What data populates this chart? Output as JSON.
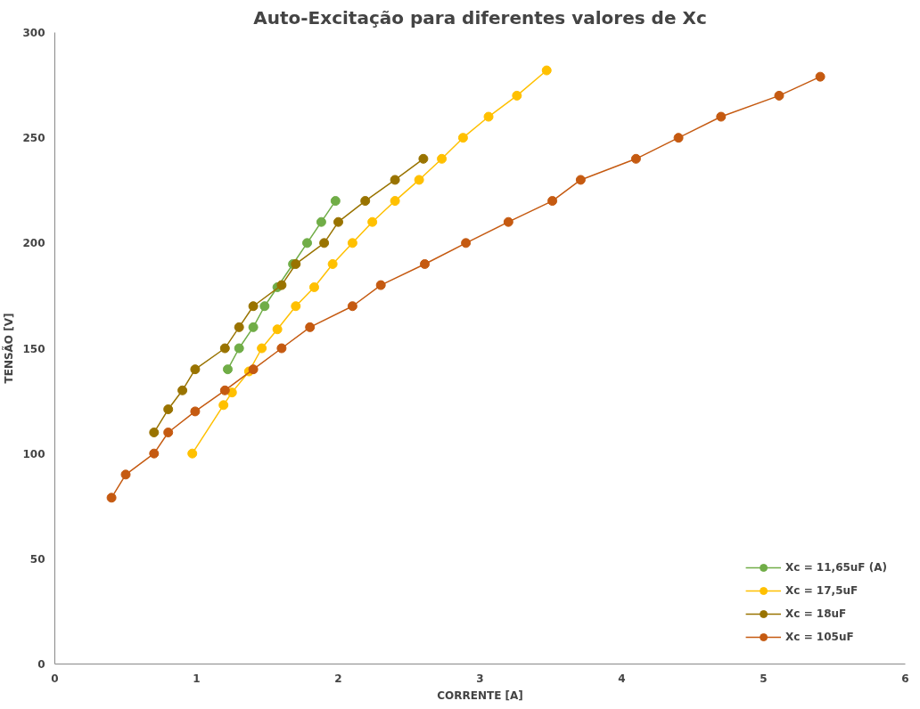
{
  "chart_data": {
    "type": "line",
    "title": "Auto-Excitação para diferentes valores de Xc",
    "xlabel": "CORRENTE [A]",
    "ylabel": "TENSÃO [V]",
    "xlim": [
      0,
      6
    ],
    "xticks": [
      0,
      1,
      2,
      3,
      4,
      5,
      6
    ],
    "ylim": [
      0,
      300
    ],
    "yticks": [
      0,
      50,
      100,
      150,
      200,
      250,
      300
    ],
    "grid": false,
    "legend": "bottom right",
    "marker": "circle",
    "line_style": "solid",
    "series": [
      {
        "name": "Xc = 11,65uF (A)",
        "color": "#70ad47",
        "x": [
          1.22,
          1.3,
          1.4,
          1.48,
          1.57,
          1.68,
          1.78,
          1.88,
          1.98
        ],
        "values": [
          140,
          150,
          160,
          170,
          179,
          190,
          200,
          210,
          220
        ]
      },
      {
        "name": "Xc = 17,5uF",
        "color": "#ffc000",
        "x": [
          0.97,
          1.19,
          1.25,
          1.37,
          1.46,
          1.57,
          1.7,
          1.83,
          1.96,
          2.1,
          2.24,
          2.4,
          2.57,
          2.73,
          2.88,
          3.06,
          3.26,
          3.47
        ],
        "values": [
          100,
          123,
          129,
          139,
          150,
          159,
          170,
          179,
          190,
          200,
          210,
          220,
          230,
          240,
          250,
          260,
          270,
          282
        ]
      },
      {
        "name": "Xc = 18uF",
        "color": "#997300",
        "x": [
          0.7,
          0.8,
          0.9,
          0.99,
          1.2,
          1.3,
          1.4,
          1.6,
          1.7,
          1.9,
          2.0,
          2.19,
          2.4,
          2.6
        ],
        "values": [
          110,
          121,
          130,
          140,
          150,
          160,
          170,
          180,
          190,
          200,
          210,
          220,
          230,
          240
        ]
      },
      {
        "name": "Xc = 105uF",
        "color": "#c55a11",
        "x": [
          0.4,
          0.5,
          0.7,
          0.8,
          0.99,
          1.2,
          1.4,
          1.6,
          1.8,
          2.1,
          2.3,
          2.61,
          2.9,
          3.2,
          3.51,
          3.71,
          4.1,
          4.4,
          4.7,
          5.11,
          5.4
        ],
        "values": [
          79,
          90,
          100,
          110,
          120,
          130,
          140,
          150,
          160,
          170,
          180,
          190,
          200,
          210,
          220,
          230,
          240,
          250,
          260,
          270,
          279
        ]
      }
    ]
  }
}
